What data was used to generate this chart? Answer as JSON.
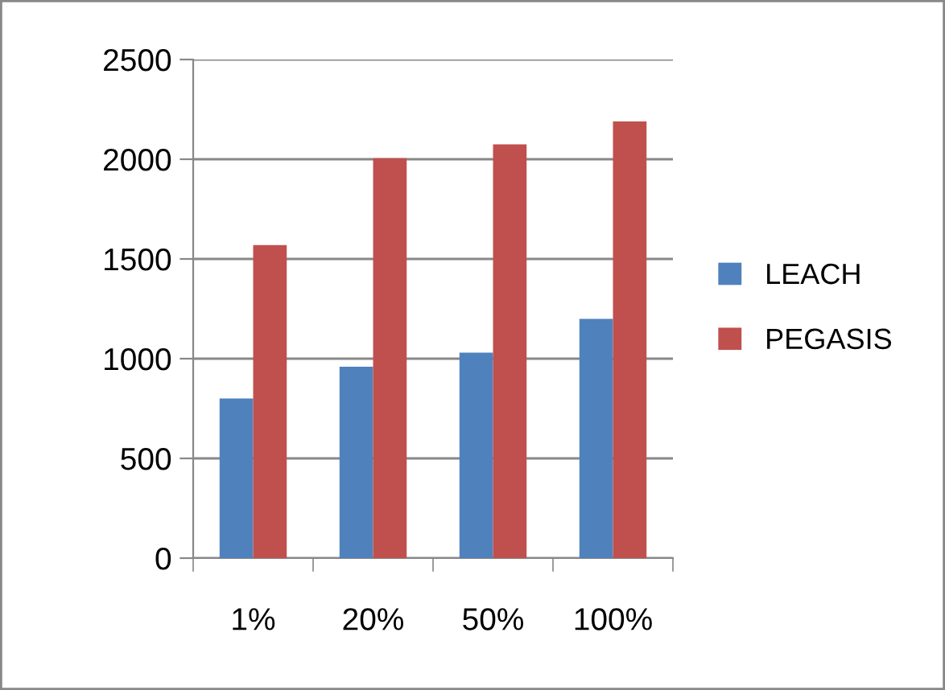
{
  "chart_data": {
    "type": "bar",
    "categories": [
      "1%",
      "20%",
      "50%",
      "100%"
    ],
    "series": [
      {
        "name": "LEACH",
        "color": "#4f81bd",
        "values": [
          800,
          960,
          1030,
          1200
        ]
      },
      {
        "name": "PEGASIS",
        "color": "#c0504d",
        "values": [
          1570,
          2005,
          2075,
          2190
        ]
      }
    ],
    "ylim": [
      0,
      2500
    ],
    "yticks": [
      0,
      500,
      1000,
      1500,
      2000,
      2500
    ],
    "grid": "y",
    "legend": "right"
  }
}
